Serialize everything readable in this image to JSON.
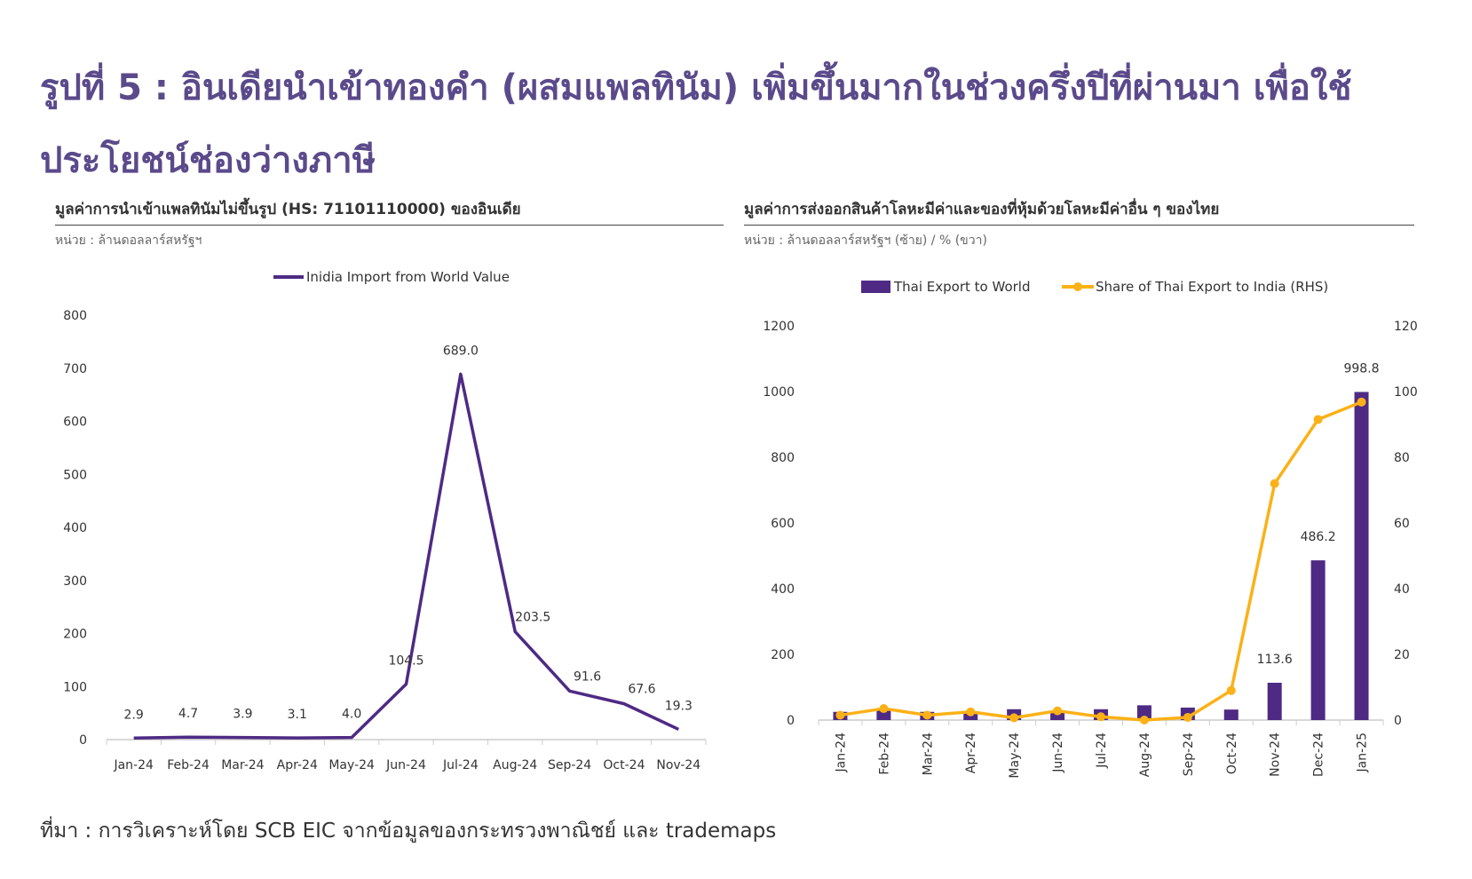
{
  "title": "รูปที่ 5 : อินเดียนำเข้าทองคำ (ผสมแพลทินัม) เพิ่มขึ้นมากในช่วงครึ่งปีที่ผ่านมา เพื่อใช้ประโยชน์ช่องว่างภาษี",
  "source": "ที่มา : การวิเคราะห์โดย SCB EIC จากข้อมูลของกระทรวงพาณิชย์ และ trademaps",
  "chart_data": [
    {
      "type": "line",
      "title": "มูลค่าการนำเข้าแพลทินัมไม่ขึ้นรูป  (HS: 71101110000) ของอินเดีย",
      "unit": "หน่วย : ล้านดอลลาร์สหรัฐฯ",
      "categories": [
        "Jan-24",
        "Feb-24",
        "Mar-24",
        "Apr-24",
        "May-24",
        "Jun-24",
        "Jul-24",
        "Aug-24",
        "Sep-24",
        "Oct-24",
        "Nov-24"
      ],
      "series": [
        {
          "name": "Inidia Import from World Value",
          "values": [
            2.9,
            4.7,
            3.9,
            3.1,
            4.0,
            104.5,
            689.0,
            203.5,
            91.6,
            67.6,
            19.3
          ],
          "labels": [
            "2.9",
            "4.7",
            "3.9",
            "3.1",
            "4.0",
            "104.5",
            "689.0",
            "203.5",
            "91.6",
            "67.6",
            "19.3"
          ],
          "color": "#4e2a84"
        }
      ],
      "ylim": [
        0,
        800
      ],
      "yticks": [
        "0",
        "100",
        "200",
        "300",
        "400",
        "500",
        "600",
        "700",
        "800"
      ],
      "legend": "top-center"
    },
    {
      "type": "bar",
      "title": "มูลค่าการส่งออกสินค้าโลหะมีค่าและของที่หุ้มด้วยโลหะมีค่าอื่น ๆ ของไทย",
      "unit": "หน่วย : ล้านดอลลาร์สหรัฐฯ (ซ้าย) / % (ขวา)",
      "categories": [
        "Jan-24",
        "Feb-24",
        "Mar-24",
        "Apr-24",
        "May-24",
        "Jun-24",
        "Jul-24",
        "Aug-24",
        "Sep-24",
        "Oct-24",
        "Nov-24",
        "Dec-24",
        "Jan-25"
      ],
      "series": [
        {
          "name": "Thai Export to World",
          "type": "bar",
          "axis": "left",
          "values": [
            25,
            30,
            25,
            25,
            33,
            28,
            33,
            45,
            38,
            32,
            113.6,
            486.2,
            998.8
          ],
          "labels": [
            "",
            "",
            "",
            "",
            "",
            "",
            "",
            "",
            "",
            "",
            "113.6",
            "486.2",
            "998.8"
          ],
          "color": "#4e2a84"
        },
        {
          "name": "Share of Thai Export to India (RHS)",
          "type": "line",
          "axis": "right",
          "values": [
            1.5,
            3.5,
            1.5,
            2.5,
            0.7,
            2.8,
            1,
            0,
            0.8,
            9,
            72,
            91.5,
            96.8
          ],
          "color": "#fbb117"
        }
      ],
      "ylim": [
        0,
        1200
      ],
      "yticks": [
        "0",
        "200",
        "400",
        "600",
        "800",
        "1000",
        "1200"
      ],
      "y2lim": [
        0,
        120
      ],
      "y2ticks": [
        "0",
        "20",
        "40",
        "60",
        "80",
        "100",
        "120"
      ],
      "legend": "top-center"
    }
  ]
}
